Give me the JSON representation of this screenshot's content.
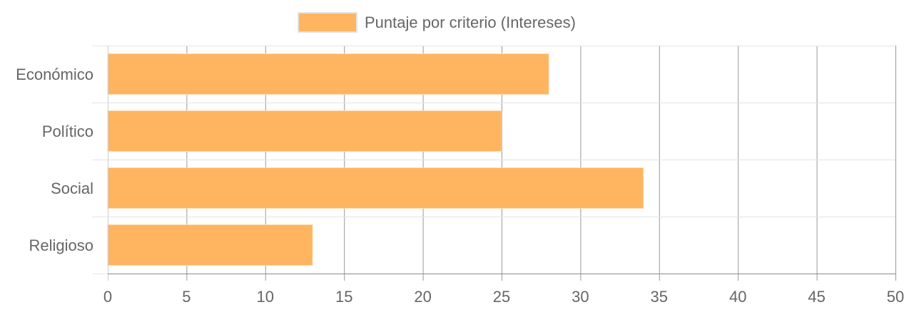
{
  "chart_data": {
    "type": "bar",
    "orientation": "horizontal",
    "categories": [
      "Económico",
      "Político",
      "Social",
      "Religioso"
    ],
    "series": [
      {
        "name": "Puntaje por criterio (Intereses)",
        "values": [
          28,
          25,
          34,
          13
        ],
        "color": "#ffb55f",
        "border_color": "#fdd9b0"
      }
    ],
    "xlim": [
      0,
      50
    ],
    "x_ticks": [
      0,
      5,
      10,
      15,
      20,
      25,
      30,
      35,
      40,
      45,
      50
    ],
    "grid": true,
    "legend": "top-center",
    "title": "",
    "xlabel": "",
    "ylabel": ""
  }
}
